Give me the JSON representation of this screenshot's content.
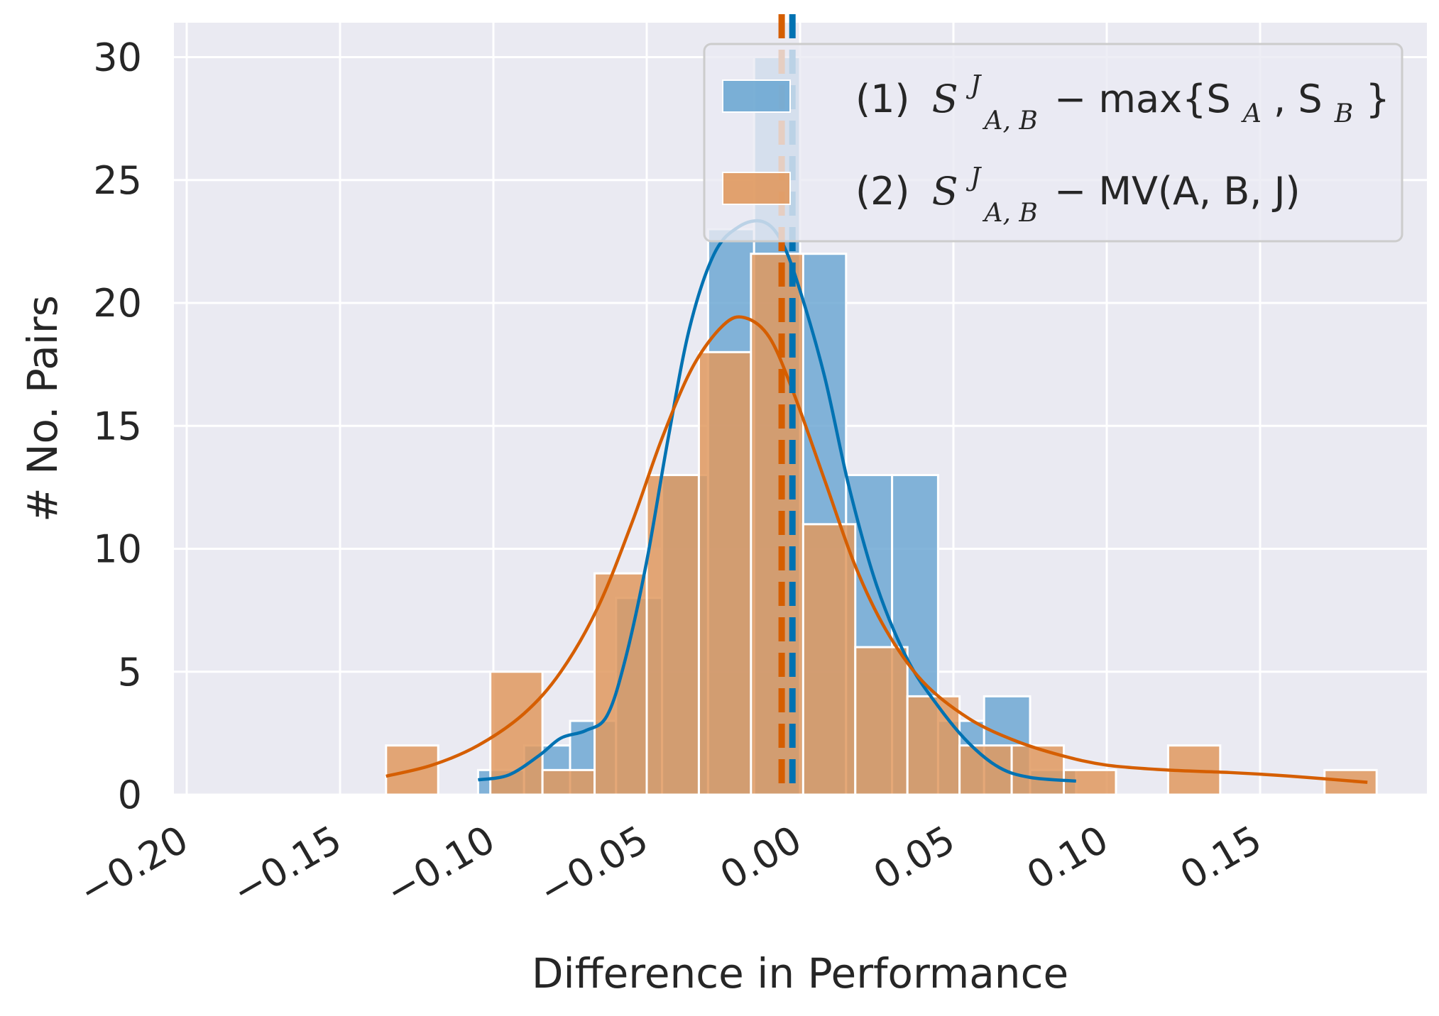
{
  "chart_data": {
    "type": "histogram",
    "title": "",
    "xlabel": "Difference in Performance",
    "ylabel": "# No. Pairs",
    "xlim": [
      -0.2,
      0.19
    ],
    "ylim": [
      0,
      31.5
    ],
    "xticks": [
      "−0.20",
      "−0.15",
      "−0.10",
      "−0.05",
      "0.00",
      "0.05",
      "0.10",
      "0.15"
    ],
    "xtick_values": [
      -0.2,
      -0.15,
      -0.1,
      -0.05,
      0.0,
      0.05,
      0.1,
      0.15
    ],
    "yticks": [
      "0",
      "5",
      "10",
      "15",
      "20",
      "25",
      "30"
    ],
    "ytick_values": [
      0,
      5,
      10,
      15,
      20,
      25,
      30
    ],
    "grid": true,
    "legend_position": "top-right",
    "series": [
      {
        "name": "(1) S^J_{A,B} − max{S_A, S_B}",
        "legend_prefix": "(1)",
        "legend_main": "S",
        "legend_sup": "J",
        "legend_sub": "A, B",
        "legend_rest": "− max{S",
        "legend_rest_sub1": "A",
        "legend_rest_mid": ", S",
        "legend_rest_sub2": "B",
        "legend_rest_end": "}",
        "color": "#0072b2",
        "bar_color": "#6ea8d3",
        "bin_edges": [
          -0.105,
          -0.09,
          -0.075,
          -0.06,
          -0.045,
          -0.03,
          -0.015,
          0.0,
          0.015,
          0.03,
          0.045,
          0.06,
          0.075,
          0.09
        ],
        "counts": [
          1,
          2,
          3,
          8,
          13,
          23,
          30,
          22,
          13,
          13,
          3,
          4,
          1,
          1
        ],
        "mean": -0.0025,
        "kde": [
          [
            -0.105,
            0.6
          ],
          [
            -0.095,
            0.8
          ],
          [
            -0.085,
            1.6
          ],
          [
            -0.078,
            2.3
          ],
          [
            -0.07,
            2.6
          ],
          [
            -0.063,
            3.2
          ],
          [
            -0.057,
            5.5
          ],
          [
            -0.05,
            9.5
          ],
          [
            -0.043,
            14.5
          ],
          [
            -0.036,
            19.0
          ],
          [
            -0.028,
            22.0
          ],
          [
            -0.02,
            23.1
          ],
          [
            -0.012,
            23.3
          ],
          [
            -0.006,
            22.5
          ],
          [
            0.0,
            20.5
          ],
          [
            0.008,
            17.0
          ],
          [
            0.016,
            12.5
          ],
          [
            0.025,
            8.5
          ],
          [
            0.035,
            5.5
          ],
          [
            0.045,
            3.6
          ],
          [
            0.055,
            2.1
          ],
          [
            0.065,
            1.1
          ],
          [
            0.075,
            0.7
          ],
          [
            0.09,
            0.55
          ]
        ]
      },
      {
        "name": "(2) S^J_{A,B} − MV(A, B, J)",
        "legend_prefix": "(2)",
        "legend_main": "S",
        "legend_sup": "J",
        "legend_sub": "A, B",
        "legend_rest": "− MV(A, B, J)",
        "color": "#d55e00",
        "bar_color": "#e0995f",
        "bin_edges": [
          -0.135,
          -0.118,
          -0.101,
          -0.084,
          -0.067,
          -0.05,
          -0.033,
          -0.016,
          0.001,
          0.018,
          0.035,
          0.052,
          0.069,
          0.086,
          0.103,
          0.12,
          0.137,
          0.154,
          0.171,
          0.188
        ],
        "counts": [
          2,
          0,
          5,
          1,
          9,
          13,
          18,
          22,
          11,
          6,
          4,
          2,
          2,
          1,
          0,
          2,
          0,
          0,
          1
        ],
        "mean": -0.006,
        "kde": [
          [
            -0.135,
            0.75
          ],
          [
            -0.12,
            1.2
          ],
          [
            -0.105,
            2.0
          ],
          [
            -0.09,
            3.3
          ],
          [
            -0.078,
            5.0
          ],
          [
            -0.066,
            7.6
          ],
          [
            -0.055,
            11.0
          ],
          [
            -0.045,
            14.5
          ],
          [
            -0.035,
            17.4
          ],
          [
            -0.025,
            19.1
          ],
          [
            -0.018,
            19.4
          ],
          [
            -0.01,
            18.6
          ],
          [
            -0.002,
            16.3
          ],
          [
            0.008,
            12.8
          ],
          [
            0.018,
            9.3
          ],
          [
            0.028,
            6.7
          ],
          [
            0.04,
            4.6
          ],
          [
            0.055,
            3.1
          ],
          [
            0.07,
            2.2
          ],
          [
            0.085,
            1.6
          ],
          [
            0.1,
            1.2
          ],
          [
            0.12,
            1.0
          ],
          [
            0.14,
            0.9
          ],
          [
            0.16,
            0.75
          ],
          [
            0.185,
            0.5
          ]
        ]
      }
    ]
  }
}
